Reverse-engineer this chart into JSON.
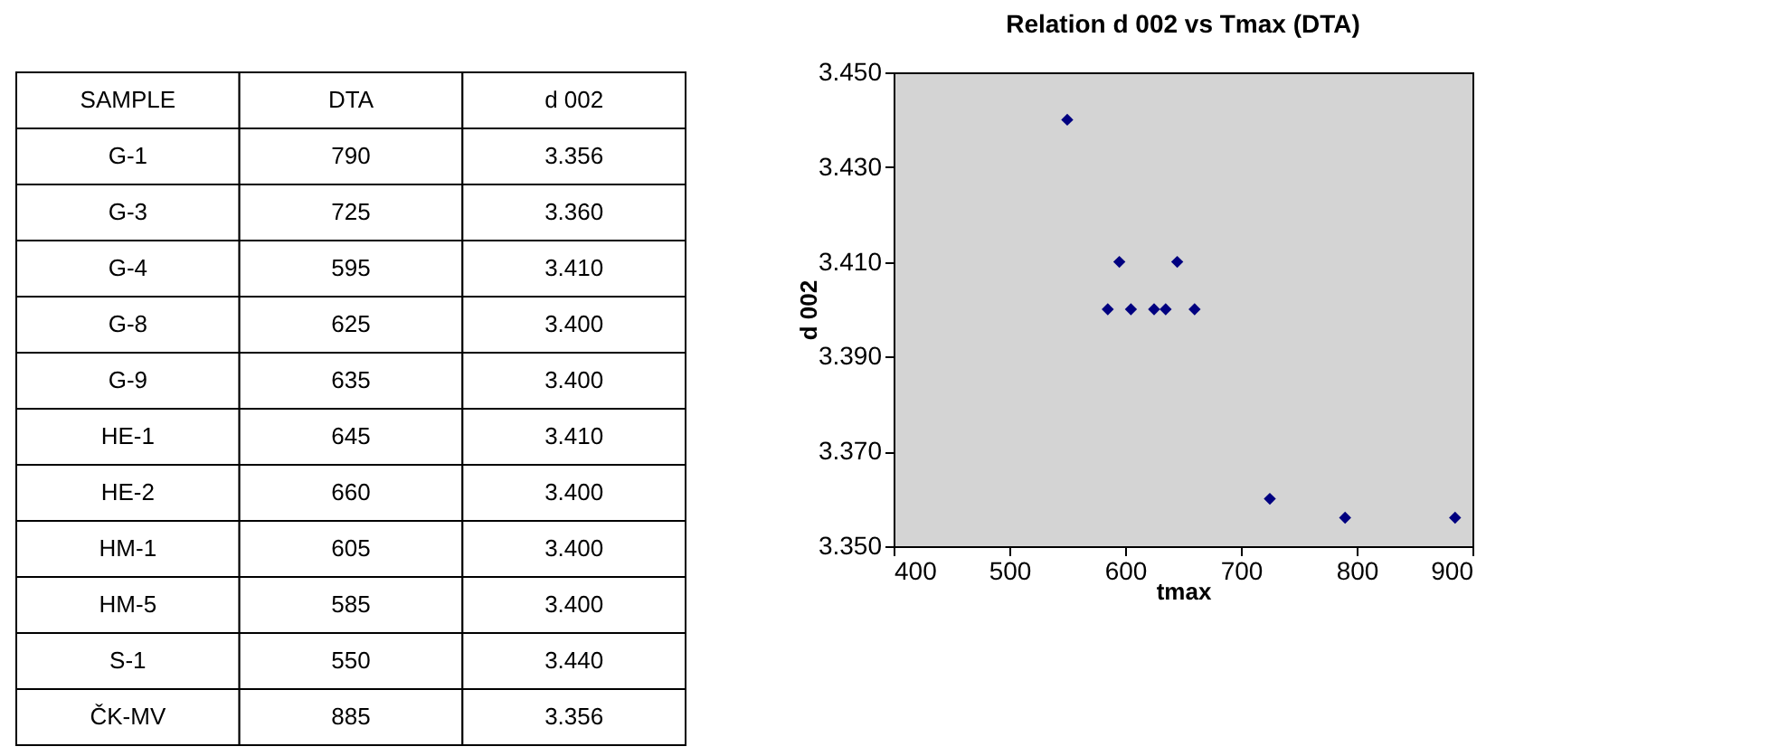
{
  "chart_data": [
    {
      "type": "other",
      "ylabel": "SAMPLE",
      "categories": [
        "DTA",
        "d 002"
      ],
      "y_categories": [
        "G-1",
        "G-3",
        "G-4",
        "G-8",
        "G-9",
        "HE-1",
        "HE-2",
        "HM-1",
        "HM-5",
        "S-1",
        "ČK-MV"
      ],
      "cell_labels": [
        [
          "790",
          "3.356"
        ],
        [
          "725",
          "3.360"
        ],
        [
          "595",
          "3.410"
        ],
        [
          "625",
          "3.400"
        ],
        [
          "635",
          "3.400"
        ],
        [
          "645",
          "3.410"
        ],
        [
          "660",
          "3.400"
        ],
        [
          "605",
          "3.400"
        ],
        [
          "585",
          "3.400"
        ],
        [
          "550",
          "3.440"
        ],
        [
          "885",
          "3.356"
        ]
      ]
    },
    {
      "type": "scatter",
      "title": "Relation d 002 vs Tmax (DTA)",
      "xlabel": "tmax",
      "ylabel": "d 002",
      "x": [
        790,
        725,
        595,
        625,
        635,
        645,
        660,
        605,
        585,
        550,
        885
      ],
      "values": [
        3.356,
        3.36,
        3.41,
        3.4,
        3.4,
        3.41,
        3.4,
        3.4,
        3.4,
        3.44,
        3.356
      ],
      "color": "#000080",
      "marker": "diamond",
      "grid": false,
      "legend": false,
      "xlim": [
        400,
        900
      ],
      "xticks": [
        400,
        500,
        600,
        700,
        800,
        900
      ],
      "ylim": [
        3.35,
        3.45
      ],
      "yticks": [
        {
          "value": 3.35,
          "label": "3.350"
        },
        {
          "value": 3.37,
          "label": "3.370"
        },
        {
          "value": 3.39,
          "label": "3.390"
        },
        {
          "value": 3.41,
          "label": "3.410"
        },
        {
          "value": 3.43,
          "label": "3.430"
        },
        {
          "value": 3.45,
          "label": "3.450"
        }
      ]
    }
  ]
}
